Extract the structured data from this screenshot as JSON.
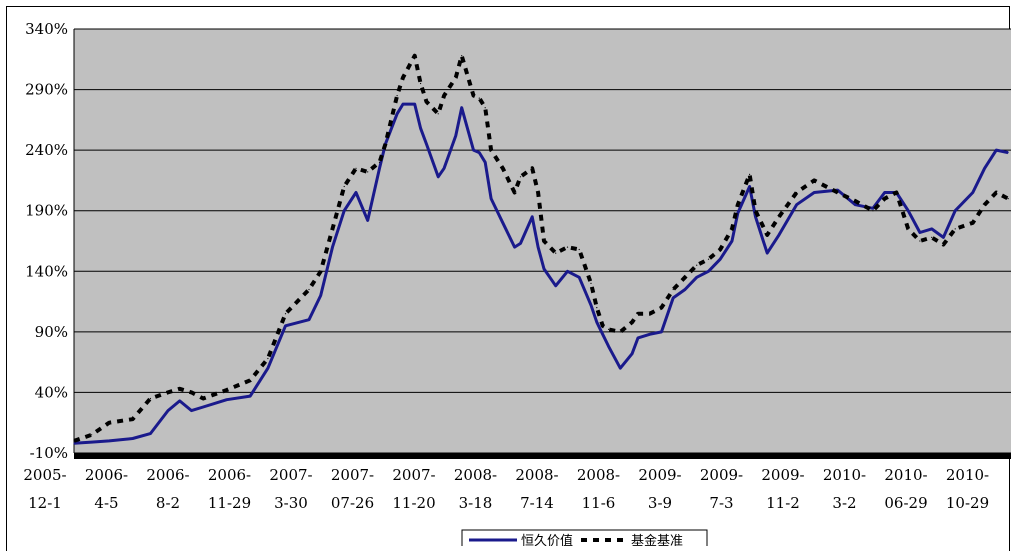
{
  "chart_data": {
    "type": "line",
    "title": "",
    "xlabel": "",
    "ylabel": "",
    "ylim": [
      -10,
      340
    ],
    "y_ticks": [
      "340%",
      "290%",
      "240%",
      "190%",
      "140%",
      "90%",
      "40%",
      "-10%"
    ],
    "y_tick_values": [
      340,
      290,
      240,
      190,
      140,
      90,
      40,
      -10
    ],
    "x_ticks": [
      [
        "2005-",
        "12-1"
      ],
      [
        "2006-",
        "4-5"
      ],
      [
        "2006-",
        "8-2"
      ],
      [
        "2006-",
        "11-29"
      ],
      [
        "2007-",
        "3-30"
      ],
      [
        "2007-",
        "07-26"
      ],
      [
        "2007-",
        "11-20"
      ],
      [
        "2008-",
        "3-18"
      ],
      [
        "2008-",
        "7-14"
      ],
      [
        "2008-",
        "11-6"
      ],
      [
        "2009-",
        "3-9"
      ],
      [
        "2009-",
        "7-3"
      ],
      [
        "2009-",
        "11-2"
      ],
      [
        "2010-",
        "3-2"
      ],
      [
        "2010-",
        "06-29"
      ],
      [
        "2010-",
        "10-29"
      ]
    ],
    "grid": true,
    "legend_position": "bottom",
    "plot_background": "#c0c0c0",
    "series": [
      {
        "name": "恒久价值",
        "color": "#1a1a8c",
        "style": "solid",
        "x": [
          0,
          0.3,
          0.6,
          1.0,
          1.3,
          1.6,
          1.8,
          2.0,
          2.2,
          2.6,
          3.0,
          3.3,
          3.6,
          4.0,
          4.2,
          4.4,
          4.6,
          4.8,
          5.0,
          5.2,
          5.3,
          5.5,
          5.6,
          5.8,
          5.9,
          6.0,
          6.2,
          6.3,
          6.5,
          6.6,
          6.8,
          6.9,
          7.0,
          7.1,
          7.3,
          7.5,
          7.6,
          7.8,
          7.9,
          8.0,
          8.2,
          8.4,
          8.6,
          8.8,
          8.9,
          9.0,
          9.1,
          9.3,
          9.5,
          9.6,
          9.8,
          10.0,
          10.2,
          10.4,
          10.6,
          10.8,
          11.0,
          11.2,
          11.3,
          11.5,
          11.6,
          11.8,
          12.0,
          12.3,
          12.6,
          13.0,
          13.3,
          13.6,
          13.8,
          14.0,
          14.2,
          14.4,
          14.6,
          14.8,
          15.0,
          15.3,
          15.5,
          15.7,
          15.9
        ],
        "values": [
          -2,
          -1,
          0,
          2,
          6,
          25,
          33,
          25,
          28,
          34,
          37,
          60,
          95,
          100,
          120,
          160,
          190,
          205,
          182,
          225,
          245,
          270,
          278,
          278,
          258,
          245,
          218,
          225,
          252,
          275,
          240,
          238,
          230,
          200,
          180,
          160,
          163,
          185,
          160,
          142,
          128,
          140,
          135,
          112,
          98,
          88,
          78,
          60,
          72,
          85,
          88,
          90,
          118,
          125,
          135,
          140,
          150,
          165,
          188,
          210,
          185,
          155,
          170,
          195,
          205,
          207,
          195,
          192,
          205,
          205,
          190,
          172,
          175,
          168,
          190,
          205,
          225,
          240,
          238
        ]
      },
      {
        "name": "基金基准",
        "color": "#000000",
        "style": "dashed",
        "x": [
          0,
          0.3,
          0.6,
          1.0,
          1.3,
          1.6,
          1.8,
          2.0,
          2.2,
          2.6,
          3.0,
          3.3,
          3.6,
          4.0,
          4.2,
          4.4,
          4.6,
          4.8,
          5.0,
          5.2,
          5.3,
          5.5,
          5.6,
          5.8,
          5.9,
          6.0,
          6.2,
          6.3,
          6.5,
          6.6,
          6.8,
          6.9,
          7.0,
          7.1,
          7.3,
          7.5,
          7.6,
          7.8,
          7.9,
          8.0,
          8.2,
          8.4,
          8.6,
          8.8,
          8.9,
          9.0,
          9.1,
          9.3,
          9.5,
          9.6,
          9.8,
          10.0,
          10.2,
          10.4,
          10.6,
          10.8,
          11.0,
          11.2,
          11.3,
          11.5,
          11.6,
          11.8,
          12.0,
          12.3,
          12.6,
          13.0,
          13.3,
          13.6,
          13.8,
          14.0,
          14.2,
          14.4,
          14.6,
          14.8,
          15.0,
          15.3,
          15.5,
          15.7,
          15.9
        ],
        "values": [
          0,
          5,
          15,
          18,
          35,
          40,
          43,
          40,
          35,
          42,
          50,
          68,
          105,
          125,
          140,
          175,
          210,
          225,
          222,
          230,
          245,
          285,
          300,
          318,
          295,
          280,
          270,
          285,
          300,
          318,
          285,
          283,
          275,
          240,
          225,
          205,
          218,
          225,
          205,
          165,
          155,
          160,
          158,
          130,
          110,
          95,
          92,
          90,
          98,
          105,
          105,
          110,
          125,
          135,
          145,
          150,
          158,
          175,
          195,
          220,
          190,
          170,
          185,
          205,
          215,
          205,
          198,
          190,
          200,
          205,
          175,
          165,
          168,
          162,
          175,
          180,
          195,
          205,
          200
        ]
      }
    ]
  }
}
